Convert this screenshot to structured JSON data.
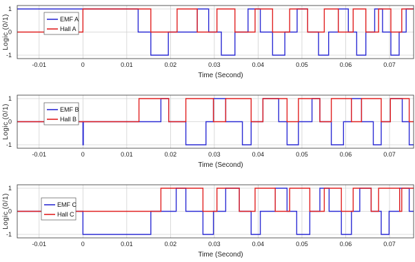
{
  "colors": {
    "emf": "#2b2bd4",
    "hall": "#e02020",
    "grid": "#d0d0d0",
    "axis": "#333333"
  },
  "chart_data": [
    {
      "type": "line",
      "xlabel": "Time (Second)",
      "ylabel": "Logic (0/1)",
      "xlim": [
        -0.015,
        0.0755
      ],
      "ylim": [
        -1.15,
        1.15
      ],
      "xticks": [
        "-0.01",
        "0",
        "0.01",
        "0.02",
        "0.03",
        "0.04",
        "0.05",
        "0.06",
        "0.07"
      ],
      "yticks": [
        "-1",
        "0",
        "1"
      ],
      "grid": true,
      "legend_position": "top-left",
      "series": [
        {
          "name": "EMF A",
          "color": "#2b2bd4",
          "x": [
            -0.015,
            0.0126,
            0.0126,
            0.0155,
            0.0155,
            0.0195,
            0.0195,
            0.0261,
            0.0261,
            0.0287,
            0.0287,
            0.0316,
            0.0316,
            0.0347,
            0.0347,
            0.0377,
            0.0377,
            0.0405,
            0.0405,
            0.0433,
            0.0433,
            0.0461,
            0.0461,
            0.0489,
            0.0489,
            0.0513,
            0.0513,
            0.0538,
            0.0538,
            0.0561,
            0.0561,
            0.0583,
            0.0583,
            0.0606,
            0.0606,
            0.0625,
            0.0625,
            0.0646,
            0.0646,
            0.0666,
            0.0666,
            0.0684,
            0.0684,
            0.0703,
            0.0703,
            0.0722,
            0.0722,
            0.0738,
            0.0738,
            0.0755
          ],
          "y": [
            1,
            1,
            0,
            0,
            -1,
            -1,
            0,
            0,
            1,
            1,
            0,
            0,
            -1,
            -1,
            0,
            0,
            1,
            1,
            0,
            0,
            -1,
            -1,
            0,
            0,
            1,
            1,
            0,
            0,
            -1,
            -1,
            0,
            0,
            1,
            1,
            0,
            0,
            -1,
            -1,
            0,
            0,
            1,
            1,
            0,
            0,
            -1,
            -1,
            0,
            0,
            1,
            1
          ]
        },
        {
          "name": "Hall A",
          "color": "#e02020",
          "x": [
            -0.015,
            0,
            0,
            0.0155,
            0.0155,
            0.0215,
            0.0215,
            0.0261,
            0.0261,
            0.0306,
            0.0306,
            0.0347,
            0.0347,
            0.0393,
            0.0393,
            0.0433,
            0.0433,
            0.0472,
            0.0472,
            0.0513,
            0.0513,
            0.0551,
            0.0551,
            0.0583,
            0.0583,
            0.0617,
            0.0617,
            0.0646,
            0.0646,
            0.0675,
            0.0675,
            0.0703,
            0.0703,
            0.0728,
            0.0728,
            0.0755
          ],
          "y": [
            0,
            0,
            1,
            1,
            0,
            0,
            1,
            1,
            0,
            0,
            1,
            1,
            0,
            0,
            1,
            1,
            0,
            0,
            1,
            1,
            0,
            0,
            1,
            1,
            0,
            0,
            1,
            1,
            0,
            0,
            1,
            1,
            0,
            0,
            1,
            1
          ]
        }
      ]
    },
    {
      "type": "line",
      "xlabel": "Time (Second)",
      "ylabel": "Logic (0/1)",
      "xlim": [
        -0.015,
        0.0755
      ],
      "ylim": [
        -1.15,
        1.15
      ],
      "xticks": [
        "-0.01",
        "0",
        "0.01",
        "0.02",
        "0.03",
        "0.04",
        "0.05",
        "0.06",
        "0.07"
      ],
      "yticks": [
        "-1",
        "0",
        "1"
      ],
      "grid": true,
      "legend_position": "top-left",
      "series": [
        {
          "name": "EMF B",
          "color": "#2b2bd4",
          "x": [
            -0.015,
            0,
            0,
            0.0001,
            0.0001,
            0.0178,
            0.0178,
            0.0196,
            0.0196,
            0.0235,
            0.0235,
            0.0281,
            0.0281,
            0.0298,
            0.0298,
            0.0326,
            0.0326,
            0.0364,
            0.0364,
            0.0384,
            0.0384,
            0.0411,
            0.0411,
            0.0447,
            0.0447,
            0.0466,
            0.0466,
            0.0492,
            0.0492,
            0.0523,
            0.0523,
            0.0541,
            0.0541,
            0.0567,
            0.0567,
            0.0595,
            0.0595,
            0.0613,
            0.0613,
            0.0636,
            0.0636,
            0.0663,
            0.0663,
            0.0681,
            0.0681,
            0.0702,
            0.0702,
            0.0729,
            0.0729,
            0.0745,
            0.0745,
            0.0755
          ],
          "y": [
            0,
            0,
            -1,
            -1,
            0,
            0,
            1,
            1,
            0,
            0,
            -1,
            -1,
            0,
            0,
            1,
            1,
            0,
            0,
            -1,
            -1,
            0,
            0,
            1,
            1,
            0,
            0,
            -1,
            -1,
            0,
            0,
            1,
            1,
            0,
            0,
            -1,
            -1,
            0,
            0,
            1,
            1,
            0,
            0,
            -1,
            -1,
            0,
            0,
            1,
            1,
            0,
            0,
            -1,
            -1
          ]
        },
        {
          "name": "Hall B",
          "color": "#e02020",
          "x": [
            -0.015,
            0.0128,
            0.0128,
            0.0196,
            0.0196,
            0.0235,
            0.0235,
            0.0298,
            0.0298,
            0.0326,
            0.0326,
            0.0384,
            0.0384,
            0.0411,
            0.0411,
            0.0466,
            0.0466,
            0.0492,
            0.0492,
            0.0541,
            0.0541,
            0.0567,
            0.0567,
            0.0613,
            0.0613,
            0.0636,
            0.0636,
            0.0681,
            0.0681,
            0.0702,
            0.0702,
            0.0745,
            0.0745,
            0.0755
          ],
          "y": [
            0,
            0,
            1,
            1,
            0,
            0,
            1,
            1,
            0,
            0,
            1,
            1,
            0,
            0,
            1,
            1,
            0,
            0,
            1,
            1,
            0,
            0,
            1,
            1,
            0,
            0,
            1,
            1,
            0,
            0,
            1,
            1,
            0,
            0
          ]
        }
      ]
    },
    {
      "type": "line",
      "xlabel": "Time (Second)",
      "ylabel": "Logic (0/1)",
      "xlim": [
        -0.015,
        0.0755
      ],
      "ylim": [
        -1.15,
        1.15
      ],
      "xticks": [
        "-0.01",
        "0",
        "0.01",
        "0.02",
        "0.03",
        "0.04",
        "0.05",
        "0.06",
        "0.07"
      ],
      "yticks": [
        "-1",
        "0",
        "1"
      ],
      "grid": true,
      "legend_position": "bottom-left",
      "series": [
        {
          "name": "EMF C",
          "color": "#2b2bd4",
          "x": [
            -0.015,
            0,
            0,
            0.0155,
            0.0155,
            0.0213,
            0.0213,
            0.0235,
            0.0235,
            0.0274,
            0.0274,
            0.0298,
            0.0298,
            0.0326,
            0.0326,
            0.0357,
            0.0357,
            0.0384,
            0.0384,
            0.0405,
            0.0405,
            0.0439,
            0.0439,
            0.0466,
            0.0466,
            0.0488,
            0.0488,
            0.0518,
            0.0518,
            0.0541,
            0.0541,
            0.0562,
            0.0562,
            0.059,
            0.059,
            0.0613,
            0.0613,
            0.0632,
            0.0632,
            0.0658,
            0.0658,
            0.0681,
            0.0681,
            0.0699,
            0.0699,
            0.0723,
            0.0723,
            0.0745,
            0.0745,
            0.0755
          ],
          "y": [
            0,
            0,
            -1,
            -1,
            0,
            0,
            1,
            1,
            0,
            0,
            -1,
            -1,
            0,
            0,
            1,
            1,
            0,
            0,
            -1,
            -1,
            0,
            0,
            1,
            1,
            0,
            0,
            -1,
            -1,
            0,
            0,
            1,
            1,
            0,
            0,
            -1,
            -1,
            0,
            0,
            1,
            1,
            0,
            0,
            -1,
            -1,
            0,
            0,
            1,
            1,
            0,
            0
          ]
        },
        {
          "name": "Hall C",
          "color": "#e02020",
          "x": [
            -0.015,
            0,
            0,
            0.0178,
            0.0178,
            0.0274,
            0.0274,
            0.0306,
            0.0306,
            0.0357,
            0.0357,
            0.0393,
            0.0393,
            0.0439,
            0.0439,
            0.0472,
            0.0472,
            0.0518,
            0.0518,
            0.0551,
            0.0551,
            0.059,
            0.059,
            0.0617,
            0.0617,
            0.0658,
            0.0658,
            0.0675,
            0.0675,
            0.0723,
            0.0723,
            0.0728,
            0.0728,
            0.0755
          ],
          "y": [
            0,
            0,
            0,
            0,
            1,
            1,
            0,
            0,
            1,
            1,
            0,
            0,
            1,
            1,
            0,
            0,
            1,
            1,
            0,
            0,
            1,
            1,
            0,
            0,
            1,
            1,
            0,
            0,
            1,
            1,
            0,
            0,
            1,
            1
          ]
        }
      ]
    }
  ]
}
